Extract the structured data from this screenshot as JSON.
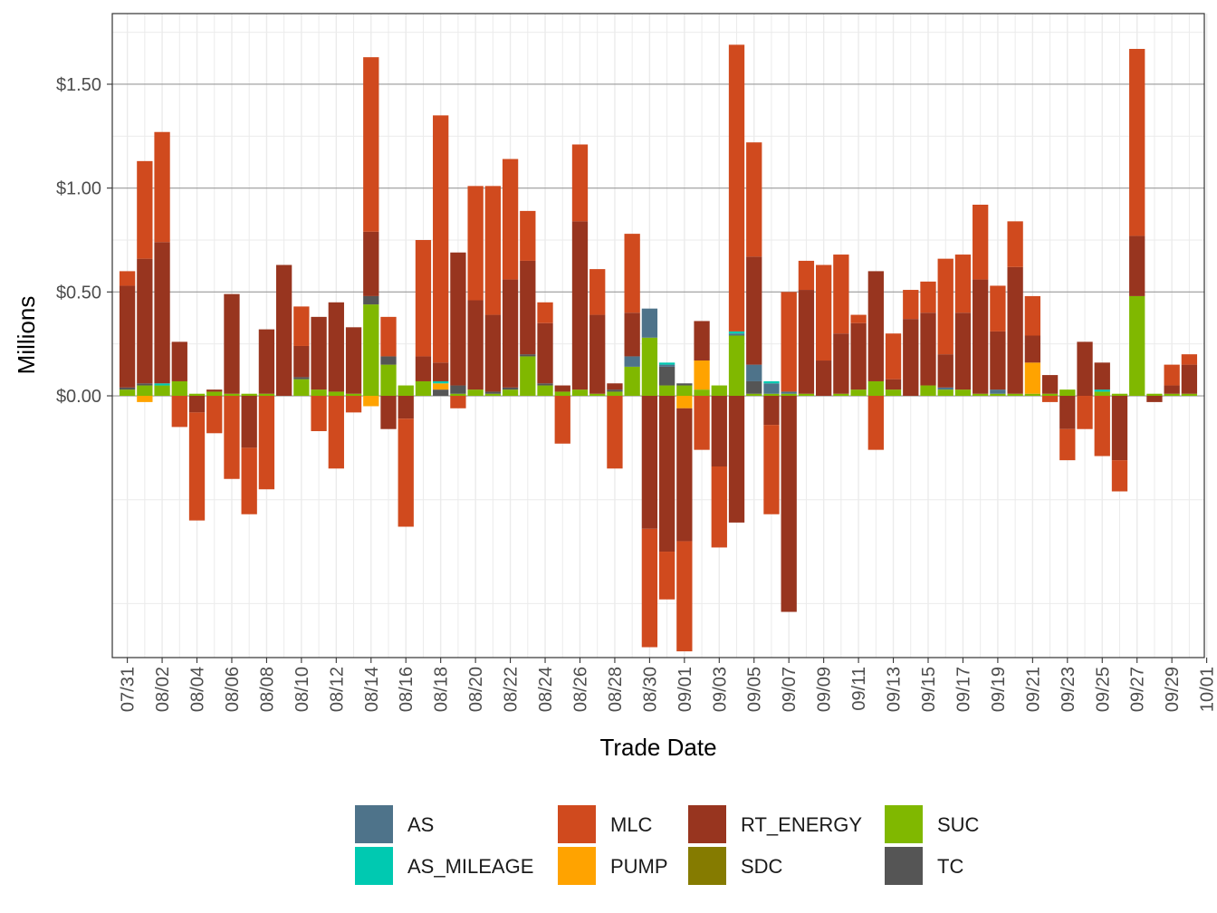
{
  "chart_data": {
    "type": "bar",
    "stacked": true,
    "xlabel": "Trade Date",
    "ylabel": "Millions",
    "ylim": [
      -1.26,
      1.84
    ],
    "y_ticks": [
      0.0,
      0.5,
      1.0,
      1.5
    ],
    "y_tick_labels": [
      "$0.00",
      "$0.50",
      "$1.00",
      "$1.50"
    ],
    "y_minor_grid": [
      -0.5,
      -1.0,
      0.25,
      0.75,
      1.25,
      1.75
    ],
    "x_tick_labels": [
      "07/31",
      "08/02",
      "08/04",
      "08/06",
      "08/08",
      "08/10",
      "08/12",
      "08/14",
      "08/16",
      "08/18",
      "08/20",
      "08/22",
      "08/24",
      "08/26",
      "08/28",
      "08/30",
      "09/01",
      "09/03",
      "09/05",
      "09/07",
      "09/09",
      "09/11",
      "09/13",
      "09/15",
      "09/17",
      "09/19",
      "09/21",
      "09/23",
      "09/25",
      "09/27",
      "09/29",
      "10/01"
    ],
    "grid": true,
    "legend_position": "bottom",
    "series_order": [
      "SUC",
      "TC",
      "SDC",
      "PUMP",
      "AS",
      "AS_MILEAGE",
      "RT_ENERGY",
      "MLC"
    ],
    "legend": [
      {
        "name": "AS",
        "color": "#4E738A"
      },
      {
        "name": "AS_MILEAGE",
        "color": "#00C9B1"
      },
      {
        "name": "MLC",
        "color": "#D04A1E"
      },
      {
        "name": "PUMP",
        "color": "#FFA300"
      },
      {
        "name": "RT_ENERGY",
        "color": "#98351F"
      },
      {
        "name": "SDC",
        "color": "#857B00"
      },
      {
        "name": "SUC",
        "color": "#80B800"
      },
      {
        "name": "TC",
        "color": "#555555"
      }
    ],
    "categories": [
      "07/31",
      "08/01",
      "08/02",
      "08/03",
      "08/04",
      "08/05",
      "08/06",
      "08/07",
      "08/08",
      "08/09",
      "08/10",
      "08/11",
      "08/12",
      "08/13",
      "08/14",
      "08/15",
      "08/16",
      "08/17",
      "08/18",
      "08/19",
      "08/20",
      "08/21",
      "08/22",
      "08/23",
      "08/24",
      "08/25",
      "08/26",
      "08/27",
      "08/28",
      "08/29",
      "08/30",
      "08/31",
      "09/01",
      "09/02",
      "09/03",
      "09/04",
      "09/05",
      "09/06",
      "09/07",
      "09/08",
      "09/09",
      "09/10",
      "09/11",
      "09/12",
      "09/13",
      "09/14",
      "09/15",
      "09/16",
      "09/17",
      "09/18",
      "09/19",
      "09/20",
      "09/21",
      "09/22",
      "09/23",
      "09/24",
      "09/25",
      "09/26",
      "09/27",
      "09/28",
      "09/29",
      "09/30"
    ],
    "series": [
      {
        "name": "SUC",
        "values": [
          0.03,
          0.05,
          0.05,
          0.07,
          0.01,
          0.02,
          0.01,
          0.01,
          0.01,
          0,
          0.08,
          0.03,
          0.02,
          0.01,
          0.44,
          0.15,
          0.05,
          0.07,
          0.0,
          0.01,
          0.03,
          0.01,
          0.03,
          0.19,
          0.05,
          0.02,
          0.03,
          0.01,
          0.02,
          0.14,
          0.28,
          0.05,
          0.05,
          0.03,
          0.05,
          0.29,
          0.01,
          0.01,
          0.01,
          0.01,
          0.0,
          0.01,
          0.03,
          0.07,
          0.03,
          0,
          0.05,
          0.03,
          0.03,
          0.01,
          0.01,
          0.01,
          0.01,
          0.01,
          0.03,
          0,
          0.02,
          0.01,
          0.48,
          0.01,
          0.01,
          0.01
        ]
      },
      {
        "name": "TC",
        "values": [
          0.01,
          0.01,
          0.0,
          0.0,
          0.0,
          0.0,
          0.0,
          0.0,
          0.0,
          0.0,
          0.01,
          0.0,
          0.0,
          0.0,
          0.04,
          0.04,
          0.0,
          0.0,
          0.03,
          0.04,
          0.0,
          0.01,
          0.01,
          0.01,
          0.01,
          0.0,
          0.0,
          0.0,
          0.01,
          0.0,
          0.0,
          0.09,
          0.01,
          0.0,
          0.0,
          0.0,
          0.06,
          0.0,
          0.0,
          0.0,
          0.0,
          0.0,
          0.0,
          0.0,
          0.0,
          0.0,
          0.0,
          0.0,
          0.0,
          0.0,
          0.0,
          0.0,
          0.0,
          0.0,
          0.0,
          0.0,
          0.0,
          0.0,
          0.0,
          0.0,
          0.0,
          0.0
        ]
      },
      {
        "name": "SDC",
        "values": [
          0,
          0,
          0,
          0,
          0,
          0,
          0,
          0,
          0,
          0,
          0,
          0,
          0,
          0,
          0,
          0,
          0,
          0,
          0,
          0,
          0,
          0,
          0,
          0,
          0,
          0,
          0,
          0,
          0,
          0,
          0,
          0,
          0,
          0,
          0,
          0,
          0,
          0,
          0,
          0,
          0,
          0,
          0,
          0,
          0,
          0,
          0,
          0,
          0,
          0,
          0,
          0,
          0,
          0,
          0,
          0,
          0,
          0,
          0,
          0,
          0,
          0
        ]
      },
      {
        "name": "PUMP",
        "values": [
          0,
          -0.03,
          0,
          0,
          0,
          0,
          0,
          0,
          0,
          0,
          0,
          0,
          0,
          0,
          -0.05,
          0,
          0,
          0,
          0.03,
          0,
          0,
          0,
          0,
          0,
          0,
          0,
          0,
          0,
          0,
          0,
          0,
          0,
          -0.06,
          0.14,
          0,
          0,
          0,
          0,
          0,
          0,
          0,
          0,
          0,
          0,
          0,
          0,
          0,
          0,
          0,
          0,
          0,
          0,
          0.15,
          0,
          0,
          0,
          0,
          0,
          0,
          0,
          0,
          0
        ]
      },
      {
        "name": "AS",
        "values": [
          0,
          0,
          0,
          0,
          0,
          0,
          0,
          0,
          0,
          0,
          0,
          0,
          0,
          0,
          0,
          0,
          0,
          0,
          0,
          0,
          0,
          0,
          0,
          0,
          0,
          0,
          0,
          0,
          0,
          0.05,
          0.14,
          0.01,
          0,
          0,
          0,
          0.01,
          0.08,
          0.05,
          0.01,
          0,
          0,
          0,
          0,
          0,
          0,
          0,
          0,
          0.01,
          0,
          0,
          0.02,
          0,
          0,
          0,
          0,
          0,
          0,
          0,
          0,
          0,
          0,
          0
        ]
      },
      {
        "name": "AS_MILEAGE",
        "values": [
          0,
          0,
          0.01,
          0,
          0,
          0,
          0,
          0,
          0,
          0,
          0,
          0,
          0,
          0,
          0,
          0,
          0,
          0,
          0.01,
          0,
          0,
          0,
          0,
          0,
          0,
          0,
          0,
          0,
          0,
          0,
          0,
          0.01,
          0,
          0,
          0,
          0.01,
          0,
          0.01,
          0,
          0,
          0,
          0,
          0,
          0,
          0,
          0,
          0,
          0,
          0,
          0,
          0,
          0,
          0,
          0,
          0,
          0,
          0.01,
          0,
          0,
          0,
          0,
          0
        ]
      },
      {
        "name": "RT_ENERGY",
        "values": [
          0.49,
          0.6,
          0.68,
          0.19,
          -0.08,
          0.01,
          0.48,
          -0.25,
          0.31,
          0.63,
          0.15,
          0.35,
          0.43,
          0.32,
          0.31,
          -0.16,
          -0.11,
          0.12,
          0.09,
          0.64,
          0.43,
          0.37,
          0.52,
          0.45,
          0.29,
          0.03,
          0.81,
          0.38,
          0.03,
          0.21,
          -0.64,
          -0.75,
          -0.64,
          0.19,
          -0.34,
          -0.61,
          0.52,
          -0.14,
          -1.04,
          0.5,
          0.17,
          0.29,
          0.32,
          0.53,
          0.05,
          0.37,
          0.35,
          0.16,
          0.37,
          0.55,
          0.28,
          0.61,
          0.13,
          0.09,
          -0.16,
          0.26,
          0.13,
          -0.31,
          0.29,
          -0.03,
          0.04,
          0.14
        ]
      },
      {
        "name": "MLC",
        "values": [
          0.07,
          0.47,
          0.53,
          -0.15,
          -0.52,
          -0.18,
          -0.4,
          -0.32,
          -0.45,
          0,
          0.19,
          -0.17,
          -0.35,
          -0.08,
          0.84,
          0.19,
          -0.52,
          0.56,
          1.19,
          -0.06,
          0.55,
          0.62,
          0.58,
          0.24,
          0.1,
          -0.23,
          0.37,
          0.22,
          -0.35,
          0.38,
          -0.57,
          -0.23,
          -0.53,
          -0.26,
          -0.39,
          1.38,
          0.55,
          -0.43,
          0.48,
          0.14,
          0.46,
          0.38,
          0.04,
          -0.26,
          0.22,
          0.14,
          0.15,
          0.46,
          0.28,
          0.36,
          0.22,
          0.22,
          0.19,
          -0.03,
          -0.15,
          -0.16,
          -0.29,
          -0.15,
          0.9,
          0,
          0.1,
          0.05
        ]
      }
    ]
  }
}
